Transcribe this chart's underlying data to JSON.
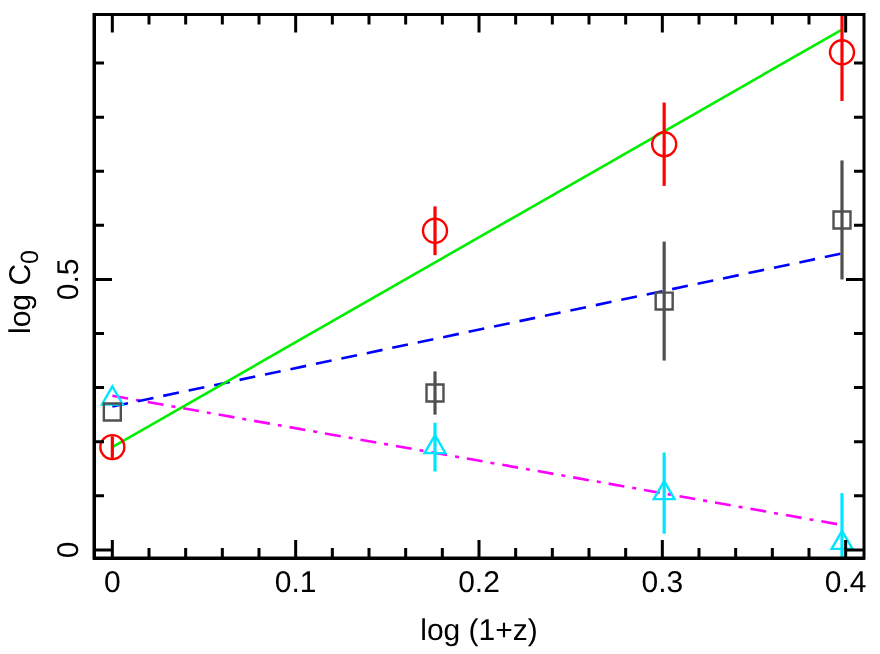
{
  "chart_data": {
    "type": "scatter",
    "xlabel": "log (1+z)",
    "ylabel": "log C$_{0}$",
    "xlim": [
      -0.01,
      0.41
    ],
    "ylim": [
      -0.015,
      0.99
    ],
    "xticks": [
      0,
      {
        "value": 0.02,
        "label": null
      },
      {
        "value": 0.04,
        "label": null
      },
      {
        "value": 0.06,
        "label": null
      },
      {
        "value": 0.08,
        "label": null
      },
      0.1,
      {
        "value": 0.12,
        "label": null
      },
      {
        "value": 0.14,
        "label": null
      },
      {
        "value": 0.16,
        "label": null
      },
      {
        "value": 0.18,
        "label": null
      },
      0.2,
      {
        "value": 0.22,
        "label": null
      },
      {
        "value": 0.24,
        "label": null
      },
      {
        "value": 0.26,
        "label": null
      },
      {
        "value": 0.28,
        "label": null
      },
      0.3,
      {
        "value": 0.32,
        "label": null
      },
      {
        "value": 0.34,
        "label": null
      },
      {
        "value": 0.36,
        "label": null
      },
      {
        "value": 0.38,
        "label": null
      },
      0.4
    ],
    "yticks": [
      0,
      {
        "value": 0.1,
        "label": null
      },
      {
        "value": 0.2,
        "label": null
      },
      {
        "value": 0.3,
        "label": null
      },
      {
        "value": 0.4,
        "label": null
      },
      0.5,
      {
        "value": 0.6,
        "label": null
      },
      {
        "value": 0.7,
        "label": null
      },
      {
        "value": 0.8,
        "label": null
      },
      {
        "value": 0.9,
        "label": null
      }
    ],
    "grid": false,
    "legend": false,
    "series": [
      {
        "marker": "circle",
        "color": "#ff0000",
        "x": [
          0,
          0.176,
          0.301,
          0.398
        ],
        "values": [
          0.19,
          0.59,
          0.75,
          0.92
        ],
        "errors": [
          0.02,
          0.045,
          0.077,
          [
            0.83,
            0.99
          ]
        ]
      },
      {
        "marker": "square",
        "color": "#505050",
        "x": [
          0,
          0.176,
          0.301,
          0.398
        ],
        "values": [
          0.255,
          0.29,
          0.46,
          0.61
        ],
        "errors": [
          null,
          0.04,
          0.11,
          0.11
        ]
      },
      {
        "marker": "triangle",
        "color": "#00e5ff",
        "x": [
          0,
          0.176,
          0.301,
          0.398
        ],
        "values": [
          0.28,
          0.19,
          0.105,
          0.013
        ],
        "errors": [
          null,
          0.045,
          0.075,
          [
            -0.015,
            0.105
          ]
        ]
      },
      {
        "type": "line",
        "marker": "none",
        "line_style": "solid",
        "color": "#00ee00",
        "x": [
          0,
          0.398
        ],
        "values": [
          0.19,
          0.962
        ]
      },
      {
        "type": "line",
        "marker": "none",
        "line_style": "dashed",
        "color": "#0000ff",
        "x": [
          0,
          0.398
        ],
        "values": [
          0.265,
          0.548
        ]
      },
      {
        "type": "line",
        "marker": "none",
        "line_style": "dashdot",
        "color": "#ff00ff",
        "x": [
          0,
          0.398
        ],
        "values": [
          0.285,
          0.046
        ]
      }
    ]
  }
}
